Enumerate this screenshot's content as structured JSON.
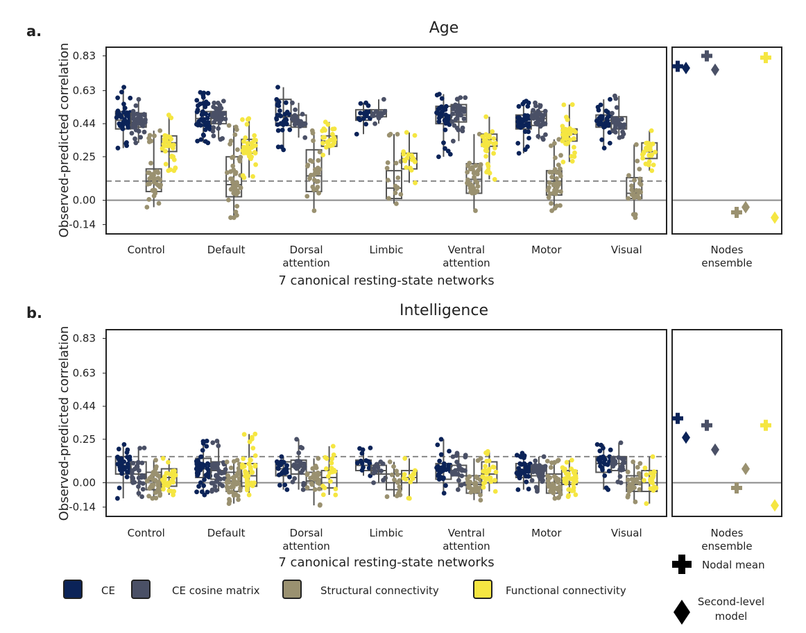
{
  "figure": {
    "panel_a_letter": "a.",
    "panel_b_letter": "b.",
    "legend": {
      "series": [
        {
          "label": "CE",
          "color": "#0b2358"
        },
        {
          "label": "CE cosine matrix",
          "color": "#4a5066"
        },
        {
          "label": "Structural connectivity",
          "color": "#9a9170"
        },
        {
          "label": "Functional connectivity",
          "color": "#f5e642"
        }
      ],
      "markers": [
        {
          "label": "Nodal mean",
          "icon": "plus-icon"
        },
        {
          "label_line1": "Second-level",
          "label_line2": "model",
          "icon": "diamond-icon"
        }
      ]
    }
  },
  "chart_data": [
    {
      "type": "box-swarm",
      "title": "Age",
      "xlabel": "7 canonical resting-state networks",
      "ylabel": "Observed-predicted correlation",
      "yticks": [
        "0.83",
        "0.63",
        "0.44",
        "0.25",
        "0.00",
        "-0.14"
      ],
      "ylim": [
        -0.19,
        0.94
      ],
      "categories": [
        [
          "Control"
        ],
        [
          "Default"
        ],
        [
          "Dorsal",
          "attention"
        ],
        [
          "Limbic"
        ],
        [
          "Ventral",
          "attention"
        ],
        [
          "Motor"
        ],
        [
          "Visual"
        ]
      ],
      "ensemble_label": [
        "Nodes",
        "ensemble"
      ],
      "reference_dashed": 0.11,
      "reference_solid": 0.0,
      "series": [
        {
          "name": "CE",
          "color": "#0b2358",
          "boxes": [
            [
              0.41,
              0.46,
              0.51
            ],
            [
              0.43,
              0.47,
              0.51
            ],
            [
              0.43,
              0.48,
              0.58
            ],
            [
              0.46,
              0.48,
              0.52
            ],
            [
              0.44,
              0.49,
              0.54
            ],
            [
              0.41,
              0.45,
              0.49
            ],
            [
              0.42,
              0.46,
              0.49
            ]
          ],
          "range": [
            [
              0.3,
              0.65
            ],
            [
              0.33,
              0.62
            ],
            [
              0.29,
              0.65
            ],
            [
              0.38,
              0.56
            ],
            [
              0.25,
              0.61
            ],
            [
              0.27,
              0.57
            ],
            [
              0.3,
              0.58
            ]
          ],
          "count": [
            40,
            44,
            30,
            18,
            38,
            42,
            28
          ]
        },
        {
          "name": "CE cosine matrix",
          "color": "#4a5066",
          "boxes": [
            [
              0.42,
              0.45,
              0.5
            ],
            [
              0.44,
              0.47,
              0.51
            ],
            [
              0.42,
              0.45,
              0.49
            ],
            [
              0.48,
              0.5,
              0.52
            ],
            [
              0.45,
              0.49,
              0.55
            ],
            [
              0.43,
              0.47,
              0.51
            ],
            [
              0.41,
              0.44,
              0.48
            ]
          ],
          "range": [
            [
              0.33,
              0.58
            ],
            [
              0.35,
              0.57
            ],
            [
              0.36,
              0.56
            ],
            [
              0.44,
              0.58
            ],
            [
              0.34,
              0.59
            ],
            [
              0.35,
              0.56
            ],
            [
              0.36,
              0.6
            ]
          ],
          "count": [
            36,
            40,
            24,
            14,
            32,
            40,
            26
          ]
        },
        {
          "name": "Structural connectivity",
          "color": "#9a9170",
          "boxes": [
            [
              0.05,
              0.11,
              0.18
            ],
            [
              0.02,
              0.09,
              0.25
            ],
            [
              0.05,
              0.14,
              0.29
            ],
            [
              0.01,
              0.07,
              0.17
            ],
            [
              0.04,
              0.12,
              0.21
            ],
            [
              0.03,
              0.11,
              0.17
            ],
            [
              0.01,
              0.04,
              0.13
            ]
          ],
          "range": [
            [
              -0.04,
              0.4
            ],
            [
              -0.1,
              0.43
            ],
            [
              -0.06,
              0.4
            ],
            [
              -0.02,
              0.38
            ],
            [
              -0.06,
              0.38
            ],
            [
              -0.06,
              0.35
            ],
            [
              -0.1,
              0.32
            ]
          ],
          "count": [
            38,
            42,
            28,
            16,
            34,
            40,
            26
          ]
        },
        {
          "name": "Functional connectivity",
          "color": "#f5e642",
          "boxes": [
            [
              0.28,
              0.33,
              0.37
            ],
            [
              0.27,
              0.31,
              0.35
            ],
            [
              0.31,
              0.34,
              0.37
            ],
            [
              0.18,
              0.24,
              0.27
            ],
            [
              0.31,
              0.35,
              0.38
            ],
            [
              0.34,
              0.38,
              0.41
            ],
            [
              0.24,
              0.28,
              0.33
            ]
          ],
          "range": [
            [
              0.17,
              0.49
            ],
            [
              0.13,
              0.47
            ],
            [
              0.26,
              0.45
            ],
            [
              0.1,
              0.39
            ],
            [
              0.12,
              0.48
            ],
            [
              0.22,
              0.55
            ],
            [
              0.17,
              0.4
            ]
          ],
          "count": [
            34,
            40,
            24,
            16,
            32,
            38,
            24
          ]
        }
      ],
      "ensemble": [
        {
          "series": "CE",
          "marker": "plus",
          "value": 0.77
        },
        {
          "series": "CE",
          "marker": "diamond",
          "value": 0.76
        },
        {
          "series": "CE cosine matrix",
          "marker": "plus",
          "value": 0.83
        },
        {
          "series": "CE cosine matrix",
          "marker": "diamond",
          "value": 0.75
        },
        {
          "series": "Structural connectivity",
          "marker": "plus",
          "value": -0.07
        },
        {
          "series": "Structural connectivity",
          "marker": "diamond",
          "value": -0.04
        },
        {
          "series": "Functional connectivity",
          "marker": "plus",
          "value": 0.82
        },
        {
          "series": "Functional connectivity",
          "marker": "diamond",
          "value": -0.1
        }
      ]
    },
    {
      "type": "box-swarm",
      "title": "Intelligence",
      "xlabel": "7 canonical resting-state networks",
      "ylabel": "Observed-predicted correlation",
      "yticks": [
        "0.83",
        "0.63",
        "0.44",
        "0.25",
        "0.00",
        "-0.14"
      ],
      "ylim": [
        -0.19,
        0.9
      ],
      "categories": [
        [
          "Control"
        ],
        [
          "Default"
        ],
        [
          "Dorsal",
          "attention"
        ],
        [
          "Limbic"
        ],
        [
          "Ventral",
          "attention"
        ],
        [
          "Motor"
        ],
        [
          "Visual"
        ]
      ],
      "ensemble_label": [
        "Nodes",
        "ensemble"
      ],
      "reference_dashed": 0.15,
      "reference_solid": 0.0,
      "series": [
        {
          "name": "CE",
          "color": "#0b2358",
          "boxes": [
            [
              0.05,
              0.1,
              0.15
            ],
            [
              0.03,
              0.08,
              0.14
            ],
            [
              0.04,
              0.08,
              0.12
            ],
            [
              0.07,
              0.1,
              0.13
            ],
            [
              0.02,
              0.07,
              0.11
            ],
            [
              0.03,
              0.07,
              0.11
            ],
            [
              0.06,
              0.11,
              0.15
            ]
          ],
          "range": [
            [
              -0.09,
              0.22
            ],
            [
              -0.07,
              0.24
            ],
            [
              -0.04,
              0.15
            ],
            [
              0.04,
              0.2
            ],
            [
              -0.06,
              0.25
            ],
            [
              -0.04,
              0.17
            ],
            [
              -0.04,
              0.22
            ]
          ],
          "count": [
            36,
            44,
            24,
            14,
            30,
            38,
            26
          ]
        },
        {
          "name": "CE cosine matrix",
          "color": "#4a5066",
          "boxes": [
            [
              0.0,
              0.05,
              0.12
            ],
            [
              0.02,
              0.07,
              0.12
            ],
            [
              0.05,
              0.09,
              0.13
            ],
            [
              0.05,
              0.07,
              0.1
            ],
            [
              0.04,
              0.07,
              0.1
            ],
            [
              0.04,
              0.07,
              0.1
            ],
            [
              0.07,
              0.11,
              0.15
            ]
          ],
          "range": [
            [
              -0.08,
              0.2
            ],
            [
              -0.05,
              0.24
            ],
            [
              -0.04,
              0.25
            ],
            [
              0.0,
              0.12
            ],
            [
              -0.04,
              0.17
            ],
            [
              -0.05,
              0.15
            ],
            [
              0.0,
              0.23
            ]
          ],
          "count": [
            30,
            38,
            24,
            12,
            26,
            34,
            22
          ]
        },
        {
          "name": "Structural connectivity",
          "color": "#9a9170",
          "boxes": [
            [
              -0.04,
              0.01,
              0.06
            ],
            [
              -0.05,
              0.01,
              0.06
            ],
            [
              -0.04,
              0.01,
              0.06
            ],
            [
              -0.04,
              0.0,
              0.05
            ],
            [
              -0.06,
              -0.01,
              0.04
            ],
            [
              -0.06,
              0.0,
              0.05
            ],
            [
              -0.05,
              -0.01,
              0.04
            ]
          ],
          "range": [
            [
              -0.09,
              0.13
            ],
            [
              -0.12,
              0.13
            ],
            [
              -0.13,
              0.14
            ],
            [
              -0.08,
              0.12
            ],
            [
              -0.1,
              0.14
            ],
            [
              -0.09,
              0.13
            ],
            [
              -0.11,
              0.12
            ]
          ],
          "count": [
            34,
            42,
            26,
            14,
            30,
            38,
            26
          ]
        },
        {
          "name": "Functional connectivity",
          "color": "#f5e642",
          "boxes": [
            [
              -0.02,
              0.03,
              0.08
            ],
            [
              -0.02,
              0.04,
              0.11
            ],
            [
              -0.03,
              0.03,
              0.07
            ],
            [
              0.0,
              0.03,
              0.07
            ],
            [
              0.0,
              0.05,
              0.12
            ],
            [
              -0.01,
              0.03,
              0.07
            ],
            [
              -0.05,
              0.0,
              0.07
            ]
          ],
          "range": [
            [
              -0.07,
              0.14
            ],
            [
              -0.07,
              0.28
            ],
            [
              -0.07,
              0.21
            ],
            [
              -0.09,
              0.14
            ],
            [
              -0.05,
              0.18
            ],
            [
              -0.08,
              0.13
            ],
            [
              -0.12,
              0.15
            ]
          ],
          "count": [
            30,
            40,
            22,
            12,
            28,
            36,
            22
          ]
        }
      ],
      "ensemble": [
        {
          "series": "CE",
          "marker": "plus",
          "value": 0.37
        },
        {
          "series": "CE",
          "marker": "diamond",
          "value": 0.26
        },
        {
          "series": "CE cosine matrix",
          "marker": "plus",
          "value": 0.33
        },
        {
          "series": "CE cosine matrix",
          "marker": "diamond",
          "value": 0.19
        },
        {
          "series": "Structural connectivity",
          "marker": "plus",
          "value": -0.03
        },
        {
          "series": "Structural connectivity",
          "marker": "diamond",
          "value": 0.08
        },
        {
          "series": "Functional connectivity",
          "marker": "plus",
          "value": 0.33
        },
        {
          "series": "Functional connectivity",
          "marker": "diamond",
          "value": -0.13
        }
      ]
    }
  ]
}
